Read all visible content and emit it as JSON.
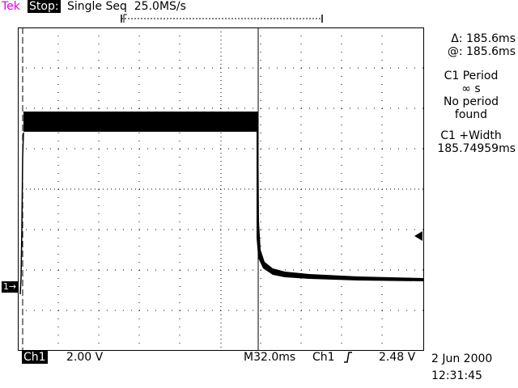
{
  "header": {
    "brand": "Tek",
    "run_state": "Stop:",
    "acquisition": "Single Seq  25.0MS/s"
  },
  "readouts": {
    "delta": "Δ: 185.6ms",
    "at": "@: 185.6ms",
    "period_label": "C1 Period",
    "period_value": "∞ s",
    "period_msg_1": "No period",
    "period_msg_2": "found",
    "width_label": "C1 +Width",
    "width_value": "185.74959ms"
  },
  "channel_marker": "1→",
  "footer": {
    "channel": "Ch1",
    "volts_per_div": "2.00 V",
    "timebase": "M32.0ms",
    "trigger_source": "Ch1",
    "trigger_level": "2.48 V",
    "date": "2 Jun 2000",
    "time": "12:31:45"
  },
  "colors": {
    "brand": "#e000e0",
    "trace": "#000000",
    "background": "#ffffff"
  }
}
